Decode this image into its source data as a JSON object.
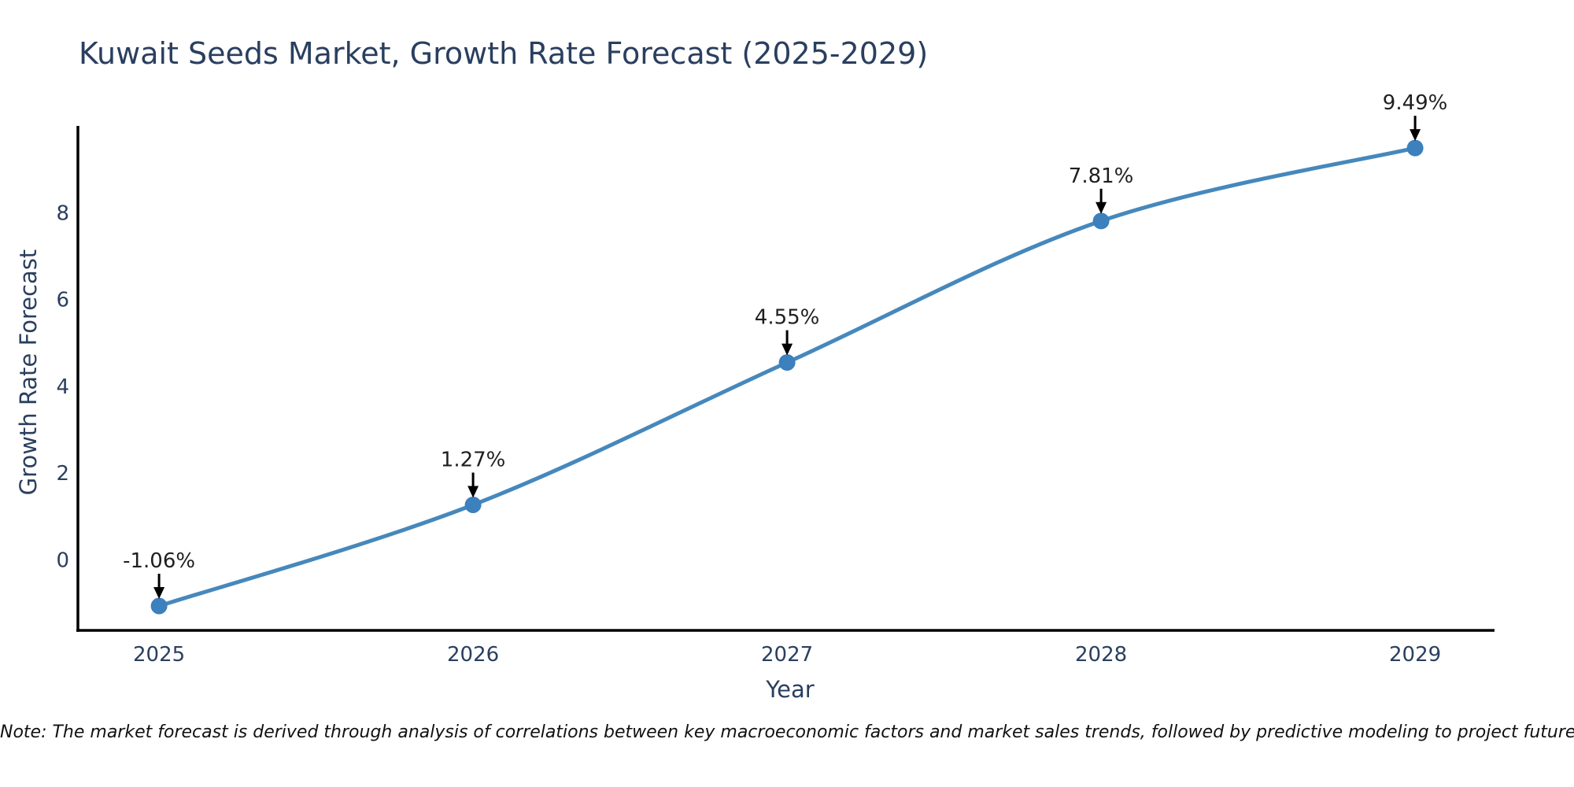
{
  "title": "Kuwait Seeds Market, Growth Rate Forecast (2025-2029)",
  "note": "Note: The market forecast is derived through analysis of correlations between key macroeconomic factors and market sales trends, followed by predictive modeling to project future sales.",
  "chart_data": {
    "type": "line",
    "title": "Kuwait Seeds Market, Growth Rate Forecast (2025-2029)",
    "x": [
      2025,
      2026,
      2027,
      2028,
      2029
    ],
    "x_tick_labels": [
      "2025",
      "2026",
      "2027",
      "2028",
      "2029"
    ],
    "series": [
      {
        "name": "Growth Rate Forecast",
        "values": [
          -1.06,
          1.27,
          4.55,
          7.81,
          9.49
        ]
      }
    ],
    "point_labels": [
      "-1.06%",
      "1.27%",
      "4.55%",
      "7.81%",
      "9.49%"
    ],
    "xlabel": "Year",
    "ylabel": "Growth Rate Forecast",
    "y_ticks": [
      0,
      2,
      4,
      6,
      8
    ],
    "xlim": [
      2024.739,
      2029.253
    ],
    "ylim": [
      -1.622,
      10.0
    ],
    "line_shape": "spline",
    "grid": false,
    "legend_position": "none",
    "colors": {
      "line": "#4688bc",
      "marker": "#3c80bd",
      "axis_line": "#000000",
      "tick_label": "#2a3f5f",
      "title": "#2a3f5f",
      "annotation_text": "#1f1f1f",
      "annotation_arrow": "#000000",
      "background": "#ffffff"
    }
  }
}
